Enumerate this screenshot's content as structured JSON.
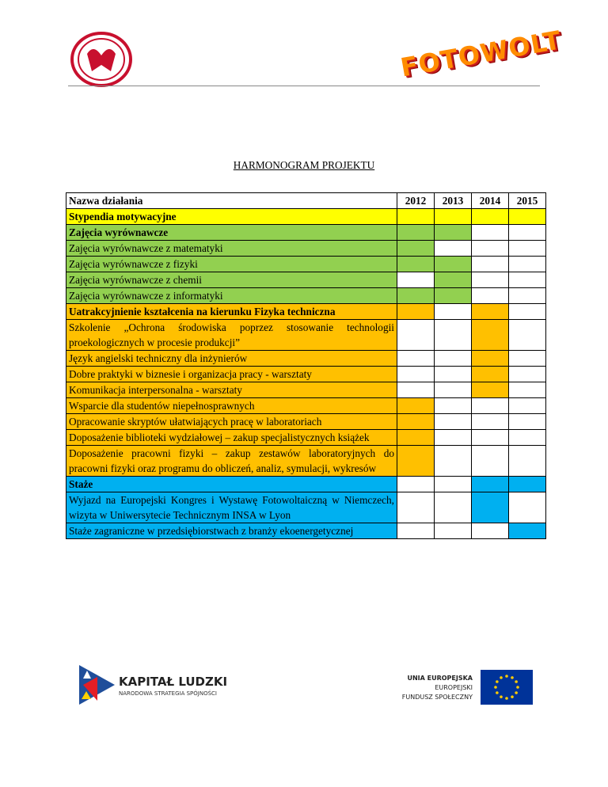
{
  "header": {
    "logo_text": "FOTOWOLT"
  },
  "title": "HARMONOGRAM PROJEKTU",
  "table": {
    "header": [
      "Nazwa działania",
      "2012",
      "2013",
      "2014",
      "2015"
    ],
    "rows": [
      {
        "name": "Stypendia motywacyjne",
        "bold": true,
        "color": "#ffff00",
        "cells": [
          "#ffff00",
          "#ffff00",
          "#ffff00",
          "#ffff00"
        ]
      },
      {
        "name": "Zajęcia wyrównawcze",
        "bold": true,
        "color": "#92d050",
        "cells": [
          "#92d050",
          "#92d050",
          "#ffffff",
          "#ffffff"
        ]
      },
      {
        "name": "Zajęcia wyrównawcze z matematyki",
        "bold": false,
        "color": "#92d050",
        "cells": [
          "#92d050",
          "#ffffff",
          "#ffffff",
          "#ffffff"
        ]
      },
      {
        "name": "Zajęcia wyrównawcze z fizyki",
        "bold": false,
        "color": "#92d050",
        "cells": [
          "#92d050",
          "#92d050",
          "#ffffff",
          "#ffffff"
        ]
      },
      {
        "name": "Zajęcia wyrównawcze z chemii",
        "bold": false,
        "color": "#92d050",
        "cells": [
          "#ffffff",
          "#92d050",
          "#ffffff",
          "#ffffff"
        ]
      },
      {
        "name": "Zajęcia wyrównawcze z informatyki",
        "bold": false,
        "color": "#92d050",
        "cells": [
          "#92d050",
          "#92d050",
          "#ffffff",
          "#ffffff"
        ]
      },
      {
        "name": "Uatrakcyjnienie kształcenia na kierunku Fizyka techniczna",
        "bold": true,
        "color": "#ffc000",
        "cells": [
          "#ffc000",
          "#ffffff",
          "#ffc000",
          "#ffffff"
        ]
      },
      {
        "name": "Szkolenie „Ochrona środowiska poprzez stosowanie technologii proekologicznych w procesie produkcji”",
        "bold": false,
        "color": "#ffc000",
        "cells": [
          "#ffffff",
          "#ffffff",
          "#ffc000",
          "#ffffff"
        ]
      },
      {
        "name": "Język angielski techniczny dla inżynierów",
        "bold": false,
        "color": "#ffc000",
        "cells": [
          "#ffffff",
          "#ffffff",
          "#ffc000",
          "#ffffff"
        ]
      },
      {
        "name": "Dobre praktyki w biznesie i organizacja pracy - warsztaty",
        "bold": false,
        "color": "#ffc000",
        "cells": [
          "#ffffff",
          "#ffffff",
          "#ffc000",
          "#ffffff"
        ]
      },
      {
        "name": "Komunikacja interpersonalna - warsztaty",
        "bold": false,
        "color": "#ffc000",
        "cells": [
          "#ffffff",
          "#ffffff",
          "#ffc000",
          "#ffffff"
        ]
      },
      {
        "name": "Wsparcie dla studentów niepełnosprawnych",
        "bold": false,
        "color": "#ffc000",
        "cells": [
          "#ffc000",
          "#ffffff",
          "#ffffff",
          "#ffffff"
        ]
      },
      {
        "name": "Opracowanie skryptów ułatwiających pracę w laboratoriach",
        "bold": false,
        "color": "#ffc000",
        "cells": [
          "#ffc000",
          "#ffffff",
          "#ffffff",
          "#ffffff"
        ]
      },
      {
        "name": "Doposażenie biblioteki wydziałowej – zakup specjalistycznych książek",
        "bold": false,
        "color": "#ffc000",
        "cells": [
          "#ffc000",
          "#ffffff",
          "#ffffff",
          "#ffffff"
        ]
      },
      {
        "name": "Doposażenie pracowni fizyki – zakup zestawów laboratoryjnych do pracowni fizyki oraz programu do obliczeń, analiz, symulacji, wykresów",
        "bold": false,
        "color": "#ffc000",
        "cells": [
          "#ffc000",
          "#ffffff",
          "#ffffff",
          "#ffffff"
        ]
      },
      {
        "name": "Staże",
        "bold": true,
        "color": "#00b0f0",
        "cells": [
          "#ffffff",
          "#ffffff",
          "#00b0f0",
          "#00b0f0"
        ]
      },
      {
        "name": "Wyjazd na Europejski Kongres i Wystawę Fotowoltaiczną w Niemczech, wizyta w Uniwersytecie Technicznym INSA w Lyon",
        "bold": false,
        "color": "#00b0f0",
        "cells": [
          "#ffffff",
          "#ffffff",
          "#00b0f0",
          "#ffffff"
        ]
      },
      {
        "name": "Staże zagraniczne w przedsiębiorstwach z branży ekoenergetycznej",
        "bold": false,
        "color": "#00b0f0",
        "cells": [
          "#ffffff",
          "#ffffff",
          "#ffffff",
          "#00b0f0"
        ]
      }
    ]
  },
  "footer": {
    "kl_title": "KAPITAŁ LUDZKI",
    "kl_subtitle": "NARODOWA STRATEGIA SPÓJNOŚCI",
    "eu_title": "UNIA EUROPEJSKA",
    "eu_line1": "EUROPEJSKI",
    "eu_line2": "FUNDUSZ SPOŁECZNY"
  }
}
